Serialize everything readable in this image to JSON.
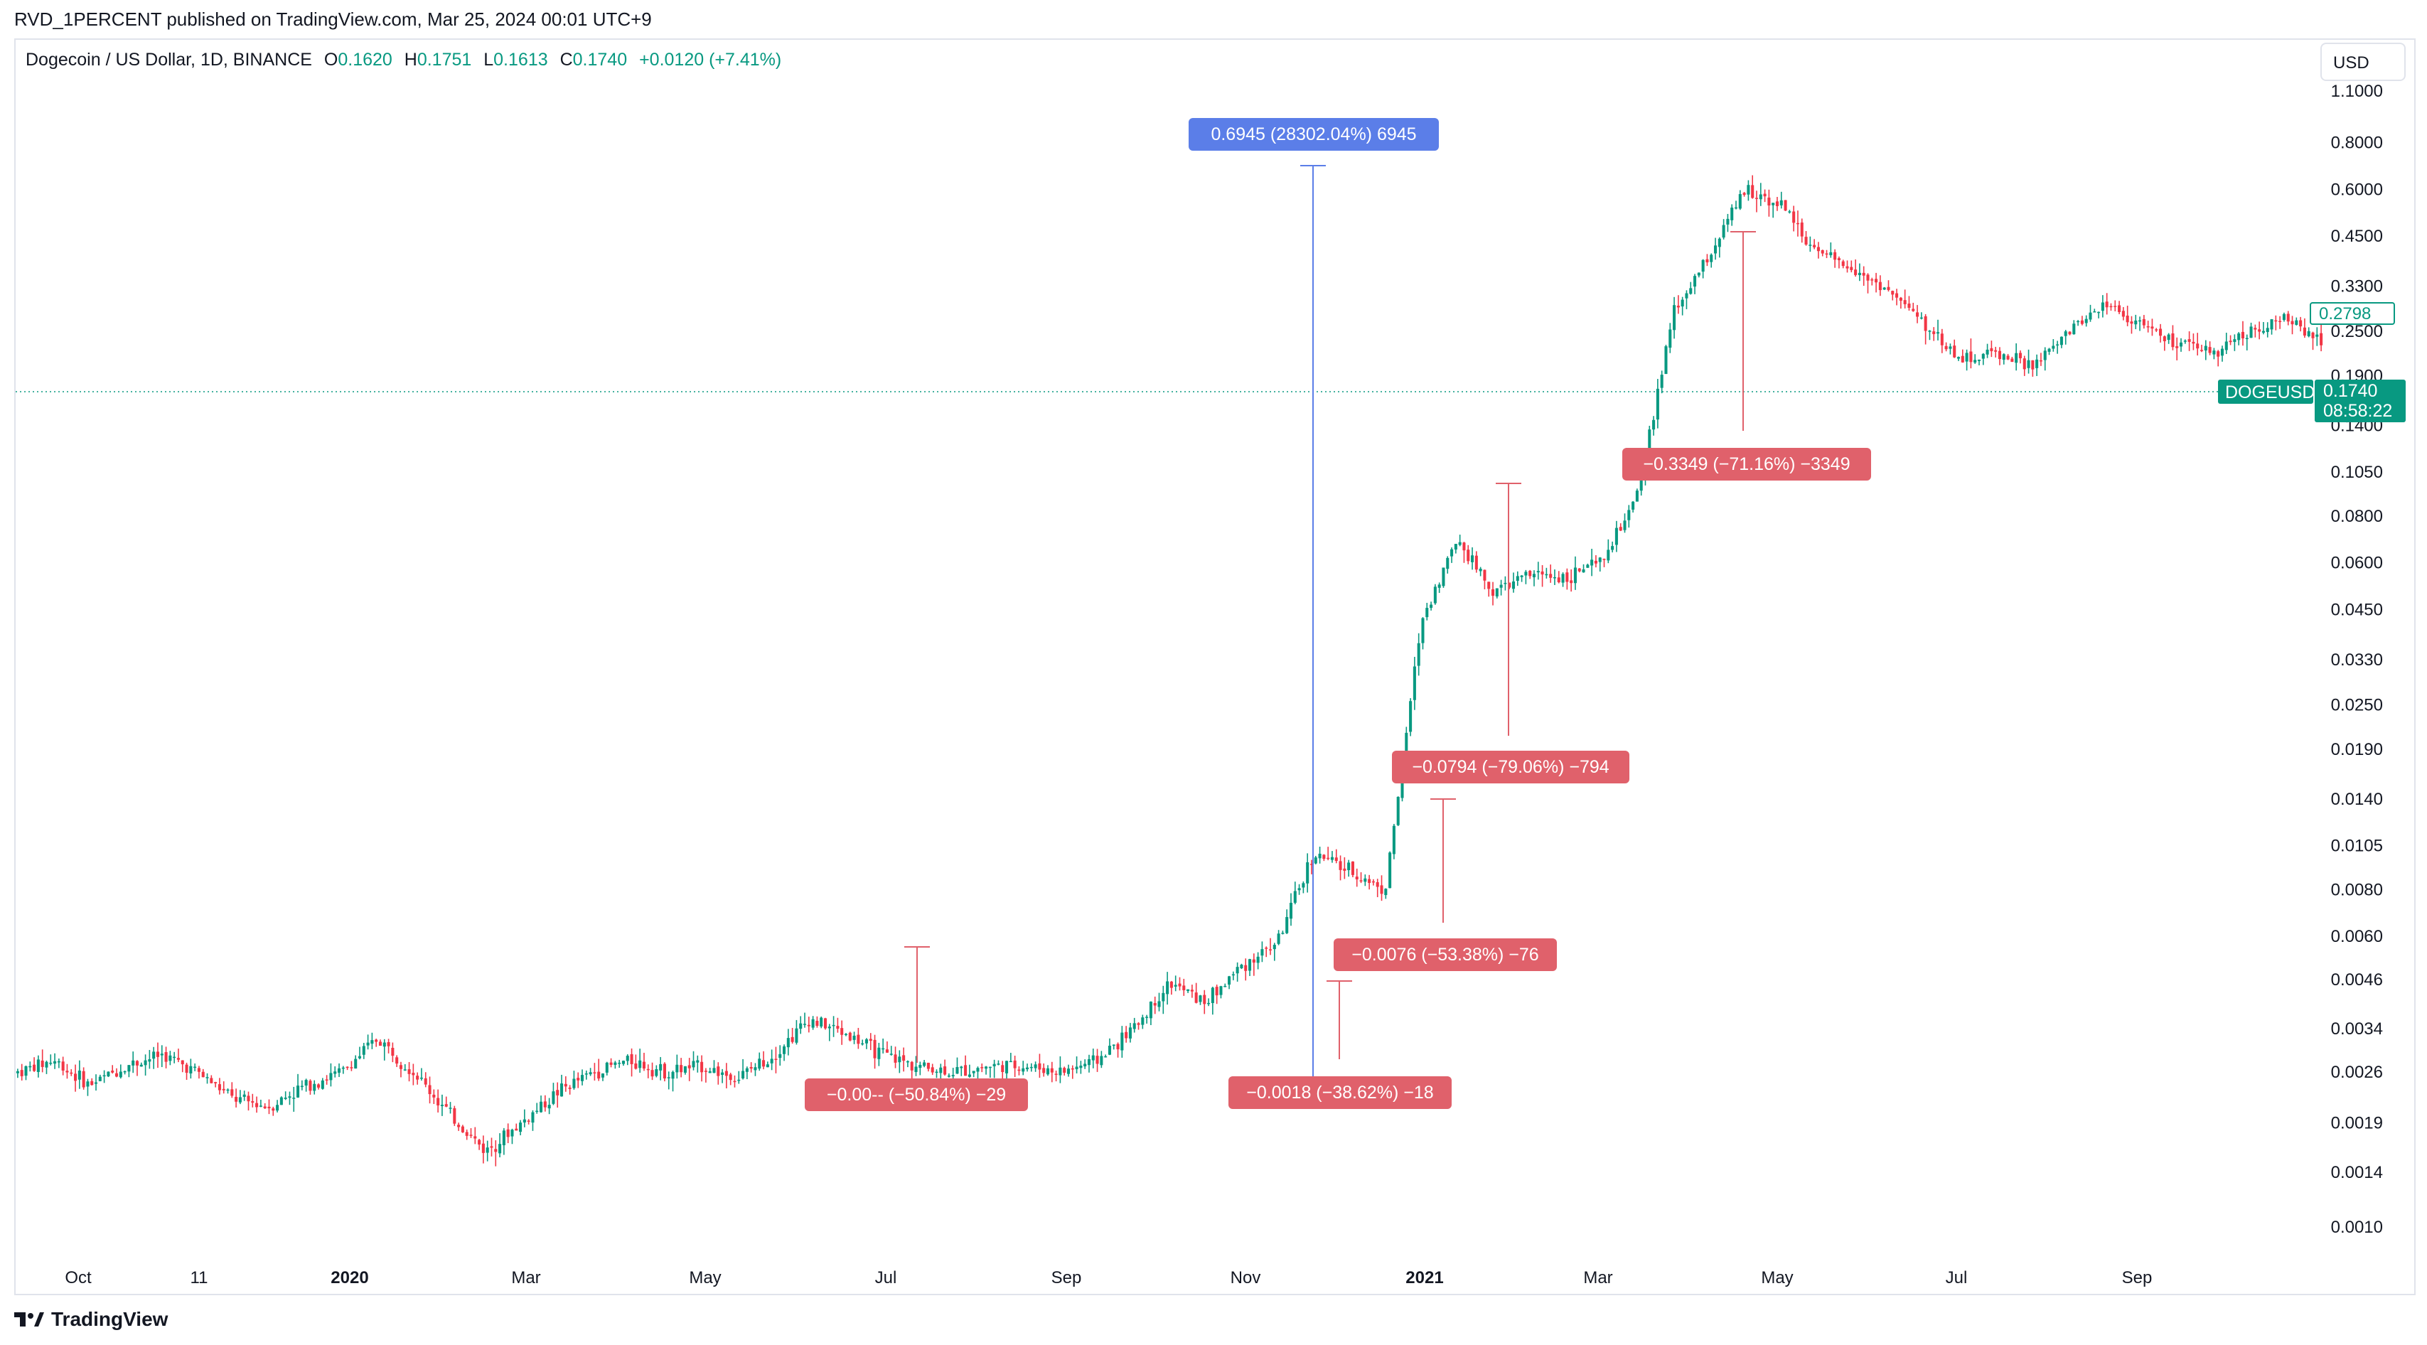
{
  "header": {
    "published": "RVD_1PERCENT published on TradingView.com, Mar 25, 2024 00:01 UTC+9"
  },
  "legend": {
    "symbol": "Dogecoin / US Dollar, 1D, BINANCE",
    "open_label": "O",
    "open": "0.1620",
    "high_label": "H",
    "high": "0.1751",
    "low_label": "L",
    "low": "0.1613",
    "close_label": "C",
    "close": "0.1740",
    "change": "+0.0120 (+7.41%)"
  },
  "currency_button": "USD",
  "footer": {
    "brand": "TradingView"
  },
  "colors": {
    "up": "#089981",
    "down": "#f23645",
    "measure_up": "#5b7ee8",
    "measure_down": "#e0616b",
    "grid_dotted": "#089981"
  },
  "chart_data": {
    "type": "candlestick",
    "log_scale": true,
    "y_ticks": [
      "1.1000",
      "0.8000",
      "0.6000",
      "0.4500",
      "0.3300",
      "0.2500",
      "0.1900",
      "0.1400",
      "0.1050",
      "0.0800",
      "0.0600",
      "0.0450",
      "0.0330",
      "0.0250",
      "0.0190",
      "0.0140",
      "0.0105",
      "0.0080",
      "0.0060",
      "0.0046",
      "0.0034",
      "0.0026",
      "0.0019",
      "0.0014",
      "0.0010"
    ],
    "x_ticks": [
      "Oct",
      "11",
      "2020",
      "Mar",
      "May",
      "Jul",
      "Sep",
      "Nov",
      "2021",
      "Mar",
      "May",
      "Jul",
      "Sep"
    ],
    "x_ticks_bold": [
      "2020",
      "2021"
    ],
    "price_tags": {
      "last_price": "0.1740",
      "symbol_tag": "DOGEUSD",
      "countdown": "08:58:22",
      "prev_tag": "0.2798"
    },
    "series_close_trend": [
      0.0026,
      0.0028,
      0.0024,
      0.0027,
      0.0029,
      0.0026,
      0.0022,
      0.0021,
      0.0024,
      0.0026,
      0.0032,
      0.0026,
      0.002,
      0.0016,
      0.0019,
      0.0023,
      0.0026,
      0.0028,
      0.0026,
      0.0027,
      0.0025,
      0.0029,
      0.0036,
      0.0033,
      0.0029,
      0.0027,
      0.0026,
      0.0027,
      0.0027,
      0.0026,
      0.0028,
      0.0034,
      0.0045,
      0.004,
      0.005,
      0.0058,
      0.01,
      0.009,
      0.008,
      0.042,
      0.07,
      0.05,
      0.056,
      0.055,
      0.06,
      0.09,
      0.28,
      0.4,
      0.6,
      0.55,
      0.4,
      0.37,
      0.32,
      0.26,
      0.21,
      0.22,
      0.2,
      0.25,
      0.3,
      0.26,
      0.23,
      0.22,
      0.25,
      0.27,
      0.24
    ],
    "measurements": [
      {
        "label": "0.6945 (28302.04%) 6945",
        "direction": "up"
      },
      {
        "label": "−0.0794 (−79.06%) −794",
        "direction": "down"
      },
      {
        "label": "−0.3349 (−71.16%) −3349",
        "direction": "down"
      },
      {
        "label": "−0.0076 (−53.38%) −76",
        "direction": "down"
      },
      {
        "label": "−0.0018 (−38.62%) −18",
        "direction": "down"
      },
      {
        "label": "−0.00‑‑ (−50.84%) −29",
        "direction": "down"
      }
    ]
  }
}
